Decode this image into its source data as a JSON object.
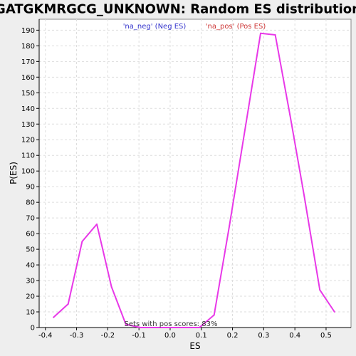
{
  "chart_data": {
    "type": "line",
    "title": "GATGKMRGCG_UNKNOWN: Random ES distribution",
    "xlabel": "ES",
    "ylabel": "P(ES)",
    "xlim": [
      -0.42,
      0.58
    ],
    "ylim": [
      0,
      197
    ],
    "x_ticks": [
      -0.4,
      -0.3,
      -0.2,
      -0.1,
      0.0,
      0.1,
      0.2,
      0.3,
      0.4,
      0.5
    ],
    "x_tick_labels": [
      "-0.4",
      "-0.3",
      "-0.2",
      "-0.1",
      "0.0",
      "0.1",
      "0.2",
      "0.3",
      "0.4",
      "0.5"
    ],
    "y_ticks": [
      0,
      10,
      20,
      30,
      40,
      50,
      60,
      70,
      80,
      90,
      100,
      110,
      120,
      130,
      140,
      150,
      160,
      170,
      180,
      190
    ],
    "y_tick_labels": [
      "0",
      "10",
      "20",
      "30",
      "40",
      "50",
      "60",
      "70",
      "80",
      "90",
      "100",
      "110",
      "120",
      "130",
      "140",
      "150",
      "160",
      "170",
      "180",
      "190"
    ],
    "grid": true,
    "line_color": "#e838e8",
    "series": [
      {
        "x": [
          -0.374,
          -0.327,
          -0.282,
          -0.235,
          -0.188,
          -0.142,
          -0.095,
          -0.048,
          0.0,
          0.047,
          0.094,
          0.141,
          0.19,
          0.29,
          0.337,
          0.384,
          0.43,
          0.48,
          0.527
        ],
        "values": [
          6.5,
          15,
          55,
          66,
          26,
          2,
          0,
          0,
          0,
          0,
          0,
          8,
          65,
          188,
          187,
          136,
          84,
          24,
          10
        ]
      }
    ],
    "legend": [
      {
        "label": "'na_neg' (Neg ES)",
        "color": "#3333cc"
      },
      {
        "label": "'na_pos' (Pos ES)",
        "color": "#cc3333"
      }
    ],
    "legend_placement": "top",
    "annotation": "Sets with pos scores: 83%"
  }
}
